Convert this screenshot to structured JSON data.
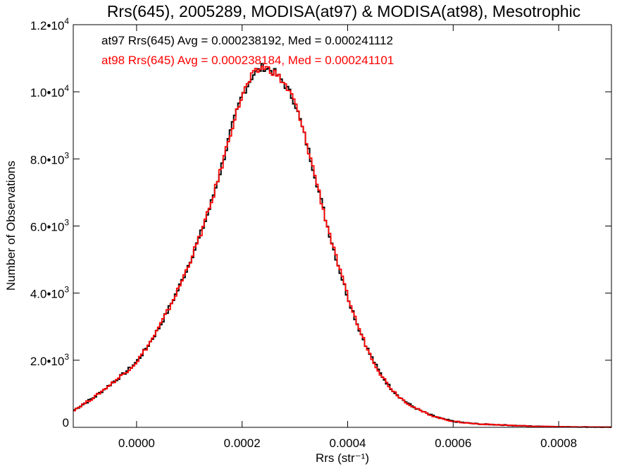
{
  "chart_data": {
    "type": "histogram-step",
    "title": "Rrs(645), 2005289, MODISA(at97) & MODISA(at98), Mesotrophic",
    "xlabel": "Rrs (str⁻¹)",
    "ylabel": "Number of Observations",
    "xlim": [
      -0.00012,
      0.0009
    ],
    "ylim": [
      0,
      12000
    ],
    "x_ticks": [
      0.0,
      0.0002,
      0.0004,
      0.0006,
      0.0008
    ],
    "x_tick_labels": [
      "0.0000",
      "0.0002",
      "0.0004",
      "0.0006",
      "0.0008"
    ],
    "y_ticks": [
      0,
      2000,
      4000,
      6000,
      8000,
      10000,
      12000
    ],
    "y_tick_labels": [
      {
        "mant": "0",
        "exp": ""
      },
      {
        "mant": "2.0•10",
        "exp": "3"
      },
      {
        "mant": "4.0•10",
        "exp": "3"
      },
      {
        "mant": "6.0•10",
        "exp": "3"
      },
      {
        "mant": "8.0•10",
        "exp": "3"
      },
      {
        "mant": "1.0•10",
        "exp": "4"
      },
      {
        "mant": "1.2•10",
        "exp": "4"
      }
    ],
    "grid": false,
    "annotations": [
      {
        "text": "at97 Rrs(645) Avg = 0.000238192, Med = 0.000241112",
        "color": "#000000"
      },
      {
        "text": "at98 Rrs(645) Avg = 0.000238184, Med = 0.000241101",
        "color": "#ff0000"
      }
    ],
    "bin_width": 4e-06,
    "series": [
      {
        "name": "at97",
        "color": "#000000",
        "x": [
          -0.00012,
          -0.0001,
          -8e-05,
          -6e-05,
          -4e-05,
          -2e-05,
          0.0,
          2e-05,
          4e-05,
          6e-05,
          8e-05,
          0.0001,
          0.00012,
          0.00014,
          0.00016,
          0.00018,
          0.0002,
          0.00022,
          0.00024,
          0.00026,
          0.00028,
          0.0003,
          0.00032,
          0.00034,
          0.00036,
          0.00038,
          0.0004,
          0.00042,
          0.00044,
          0.00046,
          0.00048,
          0.0005,
          0.00052,
          0.00054,
          0.00056,
          0.00058,
          0.0006,
          0.00062,
          0.00064,
          0.00066,
          0.00068,
          0.0007,
          0.00072,
          0.00074,
          0.00076,
          0.00078,
          0.0008,
          0.00082,
          0.00084,
          0.00086,
          0.00088,
          0.0009
        ],
        "values": [
          500,
          700,
          900,
          1150,
          1400,
          1650,
          1950,
          2400,
          2900,
          3500,
          4150,
          4900,
          5700,
          6600,
          7700,
          8900,
          9900,
          10500,
          10750,
          10600,
          10250,
          9700,
          8600,
          7400,
          6100,
          4950,
          3900,
          3000,
          2250,
          1650,
          1200,
          880,
          650,
          480,
          350,
          250,
          180,
          140,
          110,
          90,
          80,
          65,
          50,
          40,
          30,
          25,
          20,
          15,
          12,
          10,
          8,
          5
        ]
      },
      {
        "name": "at98",
        "color": "#ff0000",
        "x": [
          -0.00012,
          -0.0001,
          -8e-05,
          -6e-05,
          -4e-05,
          -2e-05,
          0.0,
          2e-05,
          4e-05,
          6e-05,
          8e-05,
          0.0001,
          0.00012,
          0.00014,
          0.00016,
          0.00018,
          0.0002,
          0.00022,
          0.00024,
          0.00026,
          0.00028,
          0.0003,
          0.00032,
          0.00034,
          0.00036,
          0.00038,
          0.0004,
          0.00042,
          0.00044,
          0.00046,
          0.00048,
          0.0005,
          0.00052,
          0.00054,
          0.00056,
          0.00058,
          0.0006,
          0.00062,
          0.00064,
          0.00066,
          0.00068,
          0.0007,
          0.00072,
          0.00074,
          0.00076,
          0.00078,
          0.0008,
          0.00082,
          0.00084,
          0.00086,
          0.00088,
          0.0009
        ],
        "values": [
          500,
          700,
          900,
          1150,
          1400,
          1650,
          1950,
          2400,
          2900,
          3500,
          4150,
          4900,
          5700,
          6600,
          7700,
          8900,
          9900,
          10500,
          10750,
          10600,
          10250,
          9700,
          8600,
          7400,
          6100,
          4950,
          3900,
          3000,
          2250,
          1650,
          1200,
          880,
          650,
          480,
          350,
          250,
          180,
          140,
          110,
          90,
          80,
          65,
          50,
          40,
          30,
          25,
          20,
          15,
          12,
          10,
          8,
          5
        ]
      }
    ]
  }
}
